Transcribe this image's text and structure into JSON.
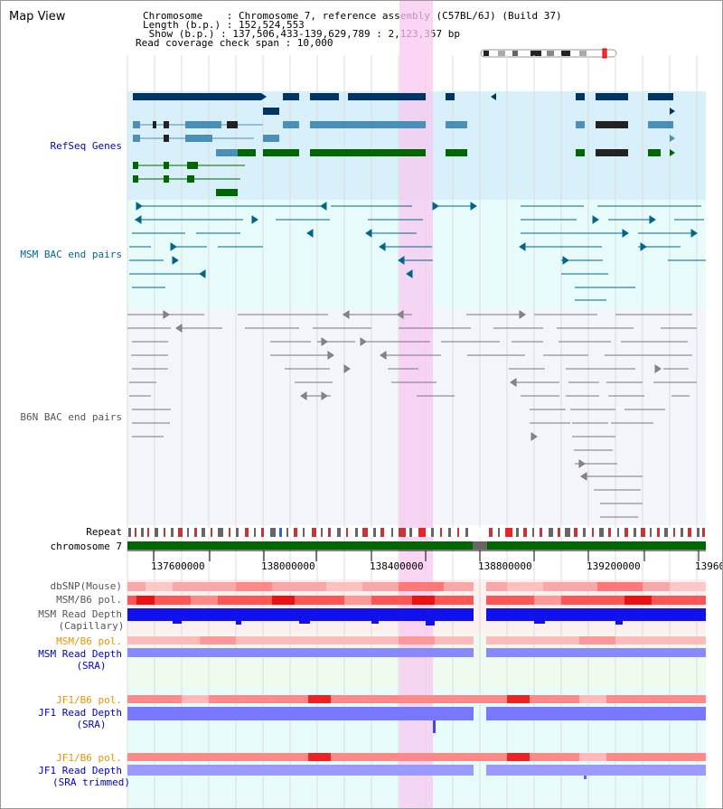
{
  "header": {
    "view_title": "Map View",
    "chromosome_line": "Chromosome    : Chromosome 7, reference assembly (C57BL/6J) (Build 37)",
    "length_line": "Length (b.p.) : 152,524,553",
    "show_line": " Show (b.p.) : 137,506,433-139,629,789 : 2,123,357 bp",
    "span_line": "Read coverage check span : 10,000"
  },
  "tracks": {
    "refseq": "RefSeq Genes",
    "msm_bac": "MSM BAC end pairs",
    "b6n_bac": "B6N BAC end pairs",
    "repeat": "Repeat",
    "chromosome": "chromosome 7",
    "dbsnp": "dbSNP(Mouse)",
    "msm_b6_pol": "MSM/B6 pol.",
    "msm_depth_cap_1": "MSM Read Depth",
    "msm_depth_cap_2": "(Capillary)",
    "msm_b6_pol_sra": "MSM/B6 pol.",
    "msm_depth_sra_1": "MSM Read Depth",
    "msm_depth_sra_2": "(SRA)",
    "jf1_b6_pol": "JF1/B6 pol.",
    "jf1_depth_sra_1": "JF1 Read Depth",
    "jf1_depth_sra_2": "(SRA)",
    "jf1_b6_pol_trim": "JF1/B6 pol.",
    "jf1_depth_trim_1": "JF1 Read Depth",
    "jf1_depth_trim_2": "(SRA trimmed)"
  },
  "axis": {
    "ticks": [
      "137600000",
      "138000000",
      "138400000",
      "138800000",
      "139200000",
      "13960"
    ]
  },
  "colors": {
    "refseq_bg": "#d8f0fa",
    "msm_bac_bg": "#e8fbfb",
    "b6n_bg": "#f4f4fb",
    "highlight": "#f8d8f4",
    "label_blue": "#0000cc",
    "label_teal": "#006699",
    "label_gray": "#555555",
    "label_orange": "#e69500",
    "gene_dark": "#003366",
    "gene_mid": "#4a8fb7",
    "gene_green": "#006600",
    "depth_blue": "#0000ee",
    "depth_light": "#8888ff"
  }
}
